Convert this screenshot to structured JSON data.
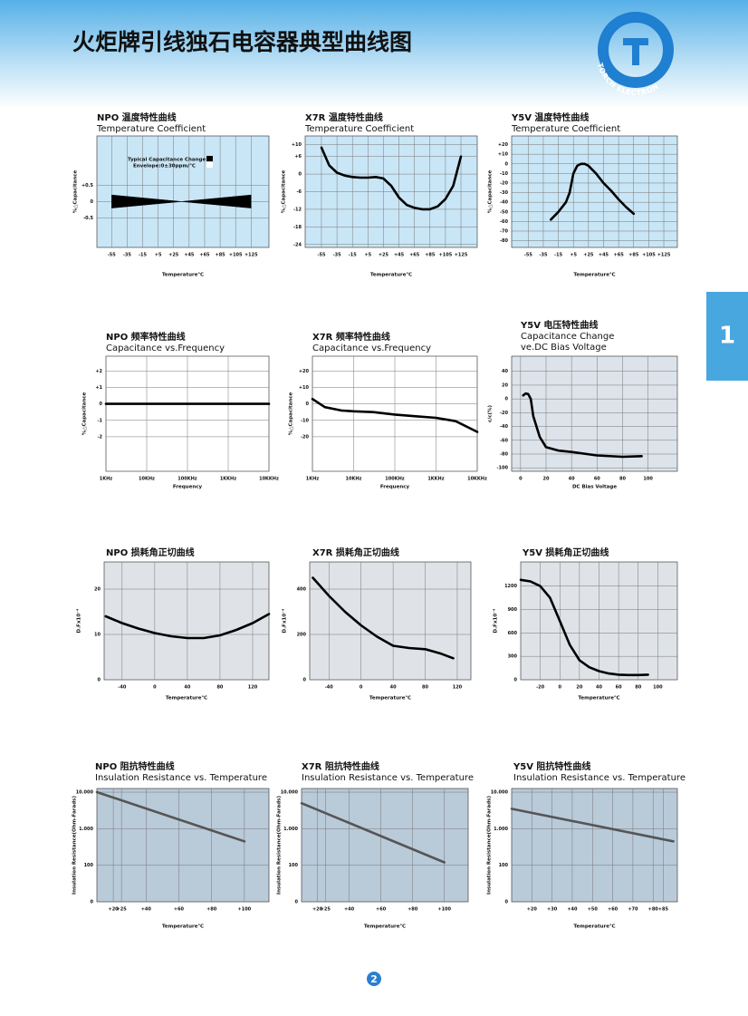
{
  "header": {
    "title": "火炬牌引线独石电容器典型曲线图",
    "logo": "TORCH ELECTRON"
  },
  "tab": "1",
  "page_number": "2",
  "chart_data": [
    {
      "type": "area",
      "title": "NPO 温度特性曲线",
      "subtitle": "Temperature Coefficient",
      "xlabel": "Temperature℃",
      "ylabel": "%△Capacitance",
      "annotations": [
        "Typical Capacitance Change",
        "Envelope:0±30ppm/℃"
      ],
      "plot_color": "#c9e6f6",
      "xlim": [
        -74,
        148
      ],
      "ylim": [
        -1.4,
        2.0
      ],
      "xticks": [
        -55,
        -35,
        -15,
        {
          "value": 5,
          "label": "+5"
        },
        {
          "value": 25,
          "label": "+25"
        },
        {
          "value": 45,
          "label": "+45"
        },
        {
          "value": 65,
          "label": "+65"
        },
        {
          "value": 85,
          "label": "+85"
        },
        {
          "value": 105,
          "label": "+105"
        },
        {
          "value": 125,
          "label": "+125"
        }
      ],
      "yticks": [
        {
          "value": 0.5,
          "label": "+0.5"
        },
        0,
        -0.5
      ],
      "series": [
        {
          "color": "#000000",
          "x": [
            -55,
            -55,
            35
          ],
          "values": [
            0.2,
            -0.2,
            0
          ]
        },
        {
          "color": "#000000",
          "x": [
            125,
            125,
            35
          ],
          "values": [
            0.2,
            -0.2,
            0
          ]
        }
      ]
    },
    {
      "type": "line",
      "title": "X7R 温度特性曲线",
      "subtitle": "Temperature Coefficient",
      "xlabel": "Temperature℃",
      "ylabel": "%△Capacitance",
      "plot_color": "#c9e6f6",
      "xlim": [
        -76,
        146
      ],
      "ylim": [
        -25,
        13
      ],
      "xticks": [
        -55,
        -35,
        -15,
        {
          "value": 5,
          "label": "+5"
        },
        {
          "value": 25,
          "label": "+25"
        },
        {
          "value": 45,
          "label": "+45"
        },
        {
          "value": 65,
          "label": "+65"
        },
        {
          "value": 85,
          "label": "+85"
        },
        {
          "value": 105,
          "label": "+105"
        },
        {
          "value": 125,
          "label": "+125"
        }
      ],
      "yticks": [
        {
          "value": 10,
          "label": "+10"
        },
        {
          "value": 6,
          "label": "+6"
        },
        0,
        -6,
        -12,
        -18,
        -24
      ],
      "series": [
        {
          "color": "#000000",
          "x": [
            -55,
            -45,
            -35,
            -25,
            -15,
            -5,
            5,
            15,
            25,
            35,
            45,
            55,
            65,
            75,
            85,
            95,
            105,
            115,
            125
          ],
          "values": [
            9,
            3,
            0.5,
            -0.5,
            -1,
            -1.2,
            -1.2,
            -1,
            -1.5,
            -4,
            -8,
            -10.5,
            -11.5,
            -12,
            -12,
            -11,
            -8.5,
            -4,
            6
          ]
        }
      ]
    },
    {
      "type": "line",
      "title": "Y5V 温度特性曲线",
      "subtitle": "Temperature Coefficient",
      "xlabel": "Temperature℃",
      "ylabel": "%△Capacitance",
      "plot_color": "#c9e6f6",
      "xlim": [
        -77,
        143
      ],
      "ylim": [
        -87,
        29
      ],
      "xticks": [
        -55,
        -35,
        -15,
        {
          "value": 5,
          "label": "+5"
        },
        {
          "value": 25,
          "label": "+25"
        },
        {
          "value": 45,
          "label": "+45"
        },
        {
          "value": 65,
          "label": "+65"
        },
        {
          "value": 85,
          "label": "+85"
        },
        {
          "value": 105,
          "label": "+105"
        },
        {
          "value": 125,
          "label": "+125"
        }
      ],
      "yticks": [
        {
          "value": 20,
          "label": "+20"
        },
        {
          "value": 10,
          "label": "+10"
        },
        0,
        -10,
        -20,
        -30,
        -40,
        -50,
        -60,
        -70,
        -80
      ],
      "series": [
        {
          "color": "#000000",
          "x": [
            -25,
            -15,
            -5,
            0,
            5,
            10,
            15,
            20,
            25,
            35,
            45,
            55,
            65,
            75,
            85
          ],
          "values": [
            -58,
            -50,
            -40,
            -30,
            -10,
            -2,
            0,
            0,
            -2,
            -10,
            -20,
            -28,
            -37,
            -45,
            -52
          ]
        }
      ]
    },
    {
      "type": "line",
      "title": "NPO 频率特性曲线",
      "subtitle": "Capacitance vs.Frequency",
      "xlabel": "Frequency",
      "ylabel": "%△Capacitance",
      "plot_color": "#ffffff",
      "xlog": true,
      "xlim": [
        1,
        10000
      ],
      "ylim": [
        -4.1,
        2.9
      ],
      "xticks": [
        {
          "value": 1,
          "label": "1KHz"
        },
        {
          "value": 10,
          "label": "10KHz"
        },
        {
          "value": 100,
          "label": "100KHz"
        },
        {
          "value": 1000,
          "label": "1KKHz"
        },
        {
          "value": 10000,
          "label": "10KKHz"
        }
      ],
      "yticks": [
        {
          "value": 2,
          "label": "+2"
        },
        {
          "value": 1,
          "label": "+1"
        },
        0,
        -1,
        -2
      ],
      "series": [
        {
          "color": "#000000",
          "x": [
            1,
            10000
          ],
          "values": [
            0,
            0
          ]
        }
      ]
    },
    {
      "type": "line",
      "title": "X7R 频率特性曲线",
      "subtitle": "Capacitance vs.Frequency",
      "xlabel": "Frequency",
      "ylabel": "%△Capacitance",
      "plot_color": "#ffffff",
      "xlog": true,
      "xlim": [
        1,
        10000
      ],
      "ylim": [
        -41,
        29
      ],
      "xticks": [
        {
          "value": 1,
          "label": "1KHz"
        },
        {
          "value": 10,
          "label": "10KHz"
        },
        {
          "value": 100,
          "label": "100KHz"
        },
        {
          "value": 1000,
          "label": "1KKHz"
        },
        {
          "value": 10000,
          "label": "10KKHz"
        }
      ],
      "yticks": [
        {
          "value": 20,
          "label": "+20"
        },
        {
          "value": 10,
          "label": "+10"
        },
        0,
        -10,
        -20
      ],
      "series": [
        {
          "color": "#000000",
          "x": [
            1,
            2,
            5,
            10,
            30,
            100,
            300,
            1000,
            3000,
            10000
          ],
          "values": [
            3,
            -2,
            -4,
            -4.5,
            -5,
            -6.5,
            -7.5,
            -8.5,
            -10.5,
            -17
          ]
        }
      ]
    },
    {
      "type": "line",
      "title": "Y5V 电压特性曲线",
      "subtitle": [
        "Capacitance Change",
        "ve.DC Bias Voltage"
      ],
      "xlabel": "DC Bias Voltage",
      "ylabel": "c/c(%)",
      "plot_color": "#dde3ea",
      "xlim": [
        -7,
        123
      ],
      "ylim": [
        -105,
        62
      ],
      "xticks": [
        0,
        20,
        40,
        60,
        80,
        100
      ],
      "yticks": [
        40,
        20,
        0,
        -20,
        -40,
        -60,
        -80,
        -100
      ],
      "series": [
        {
          "color": "#000000",
          "x": [
            2,
            4,
            6,
            8,
            10,
            15,
            20,
            30,
            40,
            60,
            80,
            95
          ],
          "values": [
            5,
            8,
            7,
            0,
            -25,
            -55,
            -70,
            -75,
            -77,
            -82,
            -84,
            -83
          ]
        }
      ]
    },
    {
      "type": "line",
      "title": "NPO 损耗角正切曲线",
      "xlabel": "Temperature℃",
      "ylabel": "D.Fx10⁻⁴",
      "plot_color": "#dfe3e7",
      "xlim": [
        -62,
        140
      ],
      "ylim": [
        0,
        26
      ],
      "xticks": [
        -40,
        0,
        40,
        80,
        120
      ],
      "yticks": [
        0,
        10,
        20
      ],
      "series": [
        {
          "color": "#000000",
          "x": [
            -60,
            -40,
            -20,
            0,
            20,
            40,
            60,
            80,
            100,
            120,
            140
          ],
          "values": [
            14,
            12.5,
            11.3,
            10.3,
            9.6,
            9.2,
            9.2,
            9.8,
            11,
            12.5,
            14.5
          ]
        }
      ]
    },
    {
      "type": "line",
      "title": "X7R 损耗角正切曲线",
      "xlabel": "Temperature℃",
      "ylabel": "D.Fx10⁻⁴",
      "plot_color": "#dfe3e7",
      "xlim": [
        -64,
        137
      ],
      "ylim": [
        0,
        520
      ],
      "xticks": [
        -40,
        0,
        40,
        80,
        120
      ],
      "yticks": [
        0,
        200,
        400
      ],
      "series": [
        {
          "color": "#000000",
          "x": [
            -60,
            -40,
            -20,
            0,
            20,
            40,
            60,
            80,
            100,
            115
          ],
          "values": [
            450,
            370,
            300,
            240,
            190,
            150,
            140,
            135,
            115,
            95
          ]
        }
      ]
    },
    {
      "type": "line",
      "title": "Y5V 损耗角正切曲线",
      "xlabel": "Temperature℃",
      "ylabel": "D.Fx10⁻⁴",
      "plot_color": "#dfe3e7",
      "xlim": [
        -40,
        120
      ],
      "ylim": [
        0,
        1510
      ],
      "xticks": [
        -20,
        0,
        20,
        40,
        60,
        80,
        100
      ],
      "yticks": [
        0,
        300,
        600,
        900,
        1200
      ],
      "series": [
        {
          "color": "#000000",
          "x": [
            -40,
            -30,
            -20,
            -10,
            0,
            10,
            20,
            30,
            40,
            50,
            60,
            70,
            80,
            90
          ],
          "values": [
            1280,
            1260,
            1200,
            1050,
            750,
            450,
            250,
            160,
            110,
            80,
            65,
            60,
            60,
            65
          ]
        }
      ]
    },
    {
      "type": "line",
      "title": "NPO 阻抗特性曲线",
      "subtitle": "Insulation Resistance vs. Temperature",
      "xlabel": "Temperature℃",
      "ylabel": "Insulation Resistance(Ohm-Farads)",
      "plot_color": "#b9cad9",
      "ylog": true,
      "y_origin_label": "0",
      "xlim": [
        10,
        115
      ],
      "ylim": [
        10,
        12600
      ],
      "xticks": [
        {
          "value": 20,
          "label": "+20"
        },
        {
          "value": 25,
          "label": "+25"
        },
        {
          "value": 40,
          "label": "+40"
        },
        {
          "value": 60,
          "label": "+60"
        },
        {
          "value": 80,
          "label": "+80"
        },
        {
          "value": 100,
          "label": "+100"
        }
      ],
      "yticks": [
        100,
        {
          "value": 1000,
          "label": "1.000"
        },
        {
          "value": 10000,
          "label": "10.000"
        }
      ],
      "series": [
        {
          "color": "#555555",
          "x": [
            10,
            100
          ],
          "values": [
            10000,
            450
          ]
        }
      ]
    },
    {
      "type": "line",
      "title": "X7R 阻抗特性曲线",
      "subtitle": "Insulation Resistance vs. Temperature",
      "xlabel": "Temperature℃",
      "ylabel": "Insulation Resistance(Ohm-Farads)",
      "plot_color": "#b9cad9",
      "ylog": true,
      "y_origin_label": "0",
      "xlim": [
        10,
        115
      ],
      "ylim": [
        10,
        12600
      ],
      "xticks": [
        {
          "value": 20,
          "label": "+20"
        },
        {
          "value": 25,
          "label": "+25"
        },
        {
          "value": 40,
          "label": "+40"
        },
        {
          "value": 60,
          "label": "+60"
        },
        {
          "value": 80,
          "label": "+80"
        },
        {
          "value": 100,
          "label": "+100"
        }
      ],
      "yticks": [
        100,
        {
          "value": 1000,
          "label": "1.000"
        },
        {
          "value": 10000,
          "label": "10.000"
        }
      ],
      "series": [
        {
          "color": "#555555",
          "x": [
            10,
            100
          ],
          "values": [
            5000,
            120
          ]
        }
      ]
    },
    {
      "type": "line",
      "title": "Y5V 阻抗特性曲线",
      "subtitle": "Insulation Resistance vs. Temperature",
      "xlabel": "Temperature℃",
      "ylabel": "Insulation Resistance(Ohm-Farads)",
      "plot_color": "#b9cad9",
      "ylog": true,
      "y_origin_label": "0",
      "xlim": [
        10,
        92
      ],
      "ylim": [
        10,
        12600
      ],
      "xticks": [
        {
          "value": 20,
          "label": "+20"
        },
        {
          "value": 30,
          "label": "+30"
        },
        {
          "value": 40,
          "label": "+40"
        },
        {
          "value": 50,
          "label": "+50"
        },
        {
          "value": 60,
          "label": "+60"
        },
        {
          "value": 70,
          "label": "+70"
        },
        {
          "value": 80,
          "label": "+80"
        },
        {
          "value": 85,
          "label": "+85"
        }
      ],
      "yticks": [
        100,
        {
          "value": 1000,
          "label": "1.000"
        },
        {
          "value": 10000,
          "label": "10.000"
        }
      ],
      "series": [
        {
          "color": "#555555",
          "x": [
            10,
            90
          ],
          "values": [
            3500,
            450
          ]
        }
      ]
    }
  ]
}
